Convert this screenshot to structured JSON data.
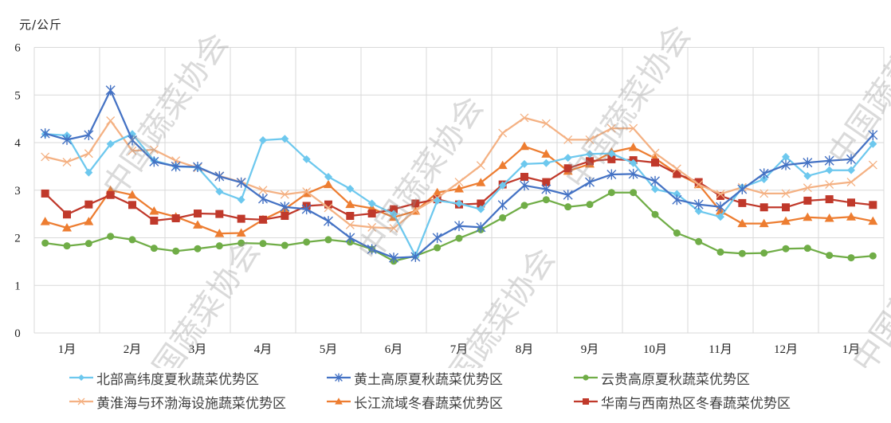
{
  "chart_data": {
    "type": "line",
    "title": "",
    "ylabel": "元/公斤",
    "xlabel": "",
    "ylim": [
      0,
      6
    ],
    "yticks": [
      0,
      1,
      2,
      3,
      4,
      5,
      6
    ],
    "grid": true,
    "legend_position": "bottom",
    "month_labels": [
      "1月",
      "2月",
      "3月",
      "4月",
      "5月",
      "6月",
      "7月",
      "8月",
      "9月",
      "10月",
      "11月",
      "12月",
      "1月"
    ],
    "points_per_month": 3,
    "series": [
      {
        "name": "北部高纬度夏秋蔬菜优势区",
        "color": "#6DC8EE",
        "marker": "diamond",
        "values": [
          4.18,
          4.15,
          3.37,
          3.97,
          4.18,
          3.62,
          3.5,
          3.48,
          2.97,
          2.8,
          4.05,
          4.08,
          3.65,
          3.28,
          3.03,
          2.72,
          2.5,
          1.62,
          2.78,
          2.72,
          2.6,
          3.1,
          3.55,
          3.57,
          3.68,
          3.76,
          3.77,
          3.57,
          3.02,
          2.92,
          2.56,
          2.44,
          3.06,
          3.23,
          3.7,
          3.3,
          3.42,
          3.42,
          3.97
        ]
      },
      {
        "name": "黄土高原夏秋蔬菜优势区",
        "color": "#4472C4",
        "marker": "asterisk",
        "values": [
          4.19,
          4.06,
          4.16,
          5.1,
          4.05,
          3.6,
          3.5,
          3.49,
          3.29,
          3.16,
          2.82,
          2.65,
          2.6,
          2.35,
          2.0,
          1.76,
          1.58,
          1.6,
          2.0,
          2.25,
          2.22,
          2.69,
          3.1,
          3.02,
          2.9,
          3.17,
          3.33,
          3.34,
          3.19,
          2.8,
          2.7,
          2.65,
          3.02,
          3.35,
          3.53,
          3.58,
          3.62,
          3.65,
          4.16
        ]
      },
      {
        "name": "云贵高原夏秋蔬菜优势区",
        "color": "#70AD47",
        "marker": "circle",
        "values": [
          1.89,
          1.83,
          1.88,
          2.03,
          1.96,
          1.78,
          1.72,
          1.77,
          1.83,
          1.89,
          1.88,
          1.84,
          1.91,
          1.96,
          1.91,
          1.76,
          1.51,
          1.62,
          1.79,
          1.99,
          2.17,
          2.42,
          2.68,
          2.8,
          2.65,
          2.7,
          2.95,
          2.95,
          2.49,
          2.1,
          1.92,
          1.7,
          1.67,
          1.68,
          1.77,
          1.78,
          1.63,
          1.58,
          1.62
        ]
      },
      {
        "name": "黄淮海与环渤海设施蔬菜优势区",
        "color": "#F4B183",
        "marker": "x",
        "values": [
          3.7,
          3.59,
          3.77,
          4.46,
          3.83,
          3.85,
          3.62,
          3.47,
          3.3,
          3.17,
          3.0,
          2.91,
          2.97,
          2.63,
          2.27,
          2.22,
          2.2,
          2.57,
          2.84,
          3.17,
          3.52,
          4.2,
          4.52,
          4.4,
          4.06,
          4.06,
          4.3,
          4.3,
          3.78,
          3.45,
          3.12,
          2.92,
          3.06,
          2.93,
          2.93,
          3.05,
          3.12,
          3.17,
          3.53
        ]
      },
      {
        "name": "长江流域冬春蔬菜优势区",
        "color": "#ED7D31",
        "marker": "triangle",
        "values": [
          2.34,
          2.21,
          2.34,
          3.0,
          2.9,
          2.56,
          2.44,
          2.27,
          2.09,
          2.1,
          2.38,
          2.6,
          2.93,
          3.12,
          2.7,
          2.62,
          2.43,
          2.56,
          2.95,
          3.03,
          3.16,
          3.52,
          3.92,
          3.76,
          3.4,
          3.55,
          3.8,
          3.9,
          3.67,
          3.35,
          3.12,
          2.56,
          2.3,
          2.3,
          2.35,
          2.43,
          2.41,
          2.44,
          2.35
        ]
      },
      {
        "name": "华南与西南热区冬春蔬菜优势区",
        "color": "#C0392B",
        "marker": "square",
        "values": [
          2.93,
          2.49,
          2.7,
          2.9,
          2.69,
          2.36,
          2.41,
          2.51,
          2.5,
          2.4,
          2.38,
          2.46,
          2.67,
          2.7,
          2.46,
          2.51,
          2.6,
          2.72,
          2.81,
          2.7,
          2.72,
          3.12,
          3.28,
          3.17,
          3.46,
          3.61,
          3.65,
          3.63,
          3.58,
          3.34,
          3.17,
          2.88,
          2.73,
          2.64,
          2.64,
          2.78,
          2.81,
          2.74,
          2.69
        ]
      }
    ]
  },
  "unit_label": "元/公斤",
  "watermark": "中国蔬菜协会"
}
